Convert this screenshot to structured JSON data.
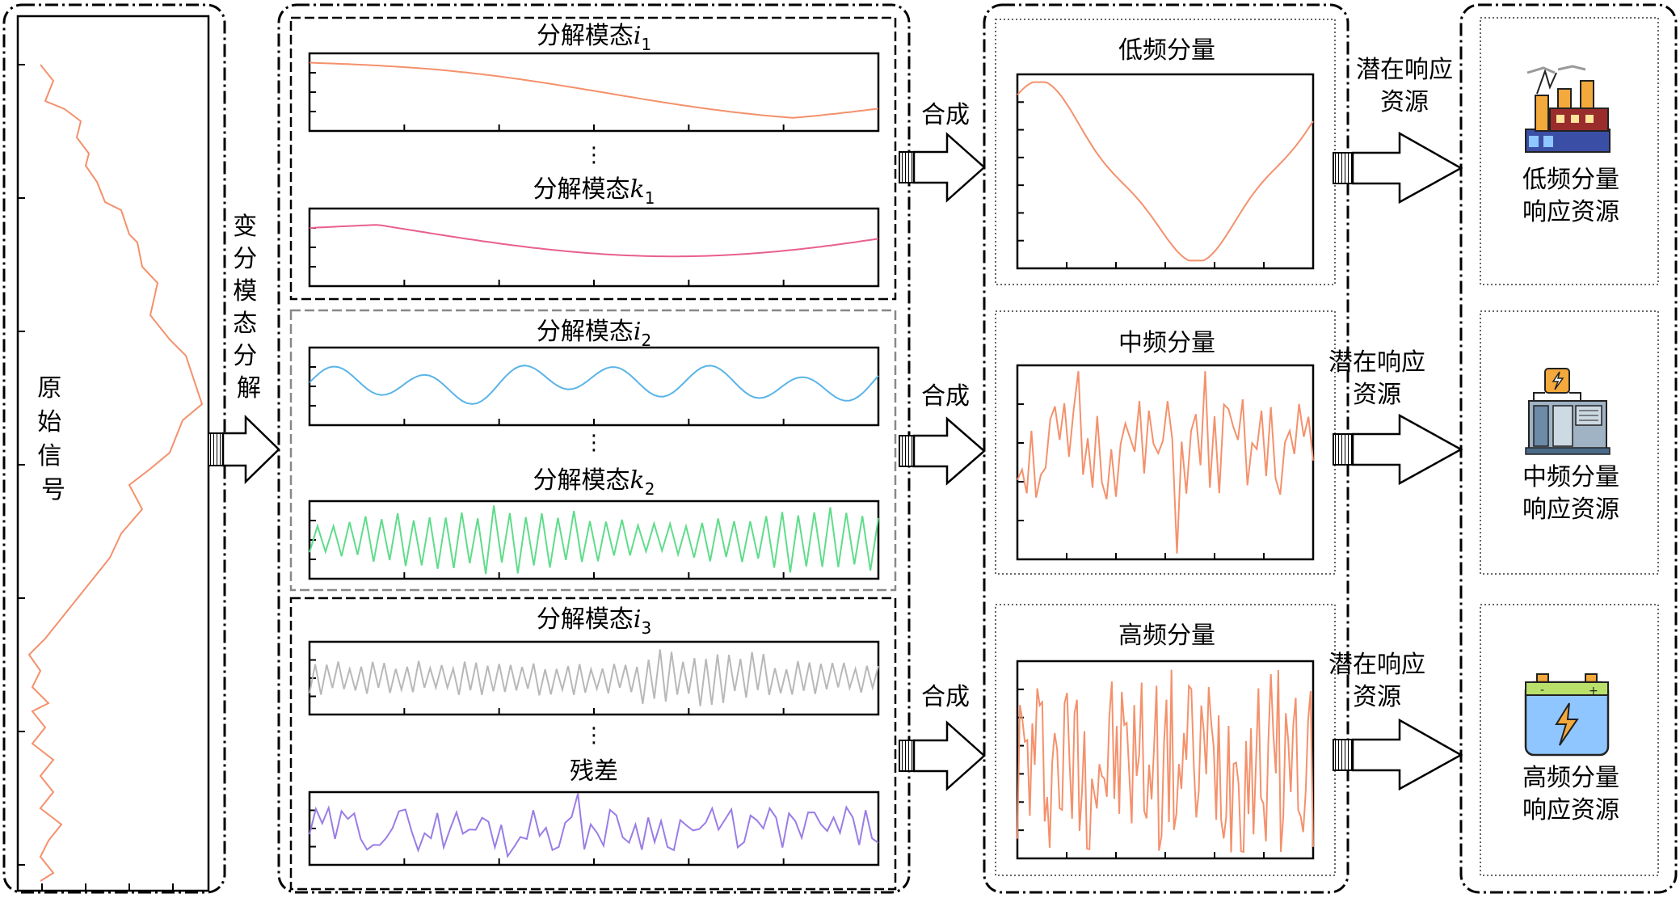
{
  "colors": {
    "mode_i1": "#f4916c",
    "mode_k1": "#e8608c",
    "mode_i2": "#5ab4e8",
    "mode_k2": "#5fdc8a",
    "mode_i3": "#b8b8b8",
    "residual": "#9a7de6",
    "original": "#f4916c",
    "component": "#f4916c"
  },
  "original": {
    "label": "原始信号"
  },
  "vmd": {
    "label": "变分模态分解"
  },
  "modes": [
    {
      "name": "分解模态",
      "sub": "i",
      "idx": "1",
      "color_key": "mode_i1"
    },
    {
      "name": "分解模态",
      "sub": "k",
      "idx": "1",
      "color_key": "mode_k1"
    },
    {
      "name": "分解模态",
      "sub": "i",
      "idx": "2",
      "color_key": "mode_i2"
    },
    {
      "name": "分解模态",
      "sub": "k",
      "idx": "2",
      "color_key": "mode_k2"
    },
    {
      "name": "分解模态",
      "sub": "i",
      "idx": "3",
      "color_key": "mode_i3"
    },
    {
      "name": "残差",
      "sub": "",
      "idx": "",
      "color_key": "residual"
    }
  ],
  "ellipsis": "⋮",
  "synth_label": "合成",
  "components": [
    {
      "title": "低频分量"
    },
    {
      "title": "中频分量"
    },
    {
      "title": "高频分量"
    }
  ],
  "potential_label": [
    "潜在响应",
    "资源"
  ],
  "resources": [
    {
      "icon": "power-plant-icon",
      "line1": "低频分量",
      "line2": "响应资源"
    },
    {
      "icon": "generator-cabinet-icon",
      "line1": "中频分量",
      "line2": "响应资源"
    },
    {
      "icon": "battery-icon",
      "line1": "高频分量",
      "line2": "响应资源"
    }
  ]
}
